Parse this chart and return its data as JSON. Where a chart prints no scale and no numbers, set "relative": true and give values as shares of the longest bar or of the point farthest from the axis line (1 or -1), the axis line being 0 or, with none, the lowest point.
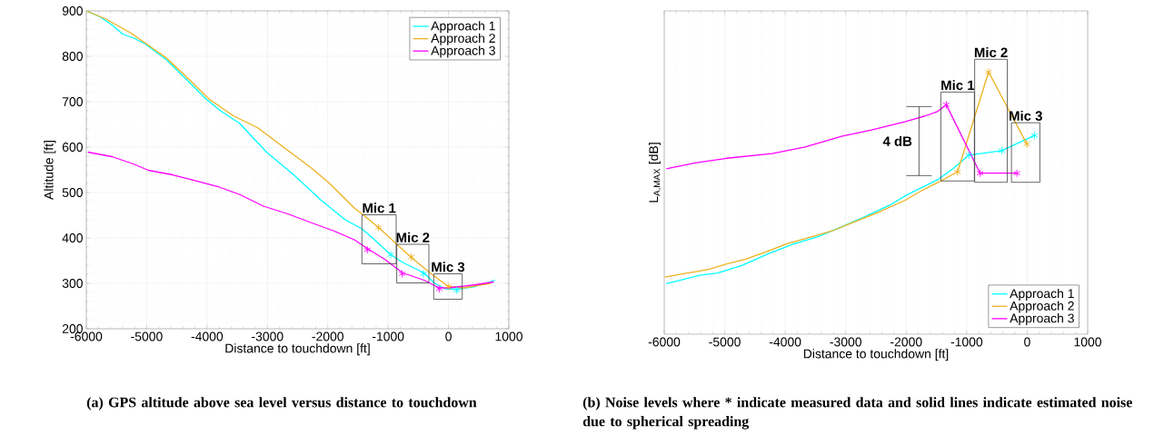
{
  "chart_data": [
    {
      "type": "line",
      "title": "(a) GPS altitude above sea level versus distance to touchdown",
      "xlabel": "Distance to touchdown [ft]",
      "ylabel": "Altitude [ft]",
      "xlim": [
        -6000,
        1000
      ],
      "ylim": [
        200,
        900
      ],
      "xticks": [
        -6000,
        -5000,
        -4000,
        -3000,
        -2000,
        -1000,
        0,
        1000
      ],
      "yticks": [
        200,
        300,
        400,
        500,
        600,
        700,
        800,
        900
      ],
      "grid": true,
      "legend": "top right",
      "annotations": [
        "Mic 1",
        "Mic 2",
        "Mic 3"
      ],
      "series": [
        {
          "name": "Approach 1",
          "color": "#00ffff",
          "x": [
            -6000,
            -5774,
            -5574,
            -5398,
            -5197,
            -5022,
            -4670,
            -4319,
            -4018,
            -3767,
            -3466,
            -3015,
            -2563,
            -2111,
            -1710,
            -1434,
            -1258,
            -957,
            -757,
            -405,
            -230,
            -54,
            146,
            448,
            774
          ],
          "values": [
            900,
            887,
            869,
            849,
            839,
            827,
            792,
            746,
            706,
            679,
            653,
            589,
            539,
            483,
            440,
            420,
            400,
            363,
            346,
            323,
            300,
            288,
            287,
            293,
            307
          ]
        },
        {
          "name": "Approach 2",
          "color": "#edb120",
          "x": [
            -6000,
            -5674,
            -5272,
            -5022,
            -4670,
            -4319,
            -3968,
            -3566,
            -3165,
            -2563,
            -2262,
            -1961,
            -1560,
            -1434,
            -1158,
            -857,
            -606,
            -305,
            -4,
            247,
            699
          ],
          "values": [
            900,
            882,
            852,
            829,
            796,
            752,
            706,
            669,
            643,
            583,
            553,
            519,
            466,
            453,
            423,
            386,
            356,
            323,
            293,
            290,
            300
          ]
        },
        {
          "name": "Approach 3",
          "color": "#ff00ff",
          "x": [
            -5975,
            -5574,
            -5222,
            -4971,
            -4570,
            -4269,
            -3817,
            -3466,
            -3065,
            -2663,
            -2262,
            -1911,
            -1560,
            -1334,
            -1058,
            -757,
            -405,
            -154,
            -4,
            196,
            448,
            749
          ],
          "values": [
            589,
            579,
            563,
            549,
            539,
            529,
            513,
            496,
            470,
            453,
            433,
            416,
            396,
            376,
            353,
            323,
            307,
            290,
            290,
            293,
            297,
            303
          ]
        },
        {
          "color": "#00ffff",
          "type": "scatter",
          "marker": "cross",
          "x": [
            -957,
            -415,
            137
          ],
          "values": [
            363,
            321,
            285
          ]
        },
        {
          "color": "#edb120",
          "type": "scatter",
          "marker": "cross",
          "x": [
            -1158,
            -616,
            -4
          ],
          "values": [
            423,
            358,
            293
          ]
        },
        {
          "color": "#ff00ff",
          "type": "scatter",
          "marker": "cross",
          "x": [
            -1344,
            -767,
            -154
          ],
          "values": [
            374,
            321,
            288
          ]
        }
      ]
    },
    {
      "type": "line",
      "title": "(b) Noise levels where * indicate measured data and solid lines indicate estimated noise due to spherical spreading",
      "xlabel": "Distance to touchdown [ft]",
      "ylabel": "L$_{A,MAX}$ [dB]",
      "relative": true,
      "xlim": [
        -6000,
        1000
      ],
      "xticks": [
        -6000,
        -5000,
        -4000,
        -3000,
        -2000,
        -1000,
        0,
        1000
      ],
      "grid": "x",
      "legend": "bottom right",
      "tick_labels": "x",
      "annotations": [
        "Mic 1",
        "Mic 2",
        "Mic 3",
        "4 dB"
      ],
      "series": [
        {
          "name": "Approach 1",
          "color": "#00ffff",
          "x": [
            -5965,
            -5666,
            -5416,
            -5117,
            -4718,
            -4269,
            -3870,
            -3471,
            -3072,
            -2673,
            -2274,
            -1975,
            -1676,
            -1476,
            -1227,
            -963,
            -419,
            120
          ],
          "values": [
            0.193,
            0.21,
            0.225,
            0.233,
            0.262,
            0.308,
            0.343,
            0.371,
            0.409,
            0.449,
            0.492,
            0.533,
            0.567,
            0.59,
            0.631,
            0.683,
            0.7,
            0.758
          ]
        },
        {
          "name": "Approach 2",
          "color": "#edb120",
          "x": [
            -5990,
            -5616,
            -5267,
            -4968,
            -4668,
            -4319,
            -3970,
            -3571,
            -3222,
            -2973,
            -2474,
            -2025,
            -1726,
            -1476,
            -1152,
            -638,
            -5
          ],
          "values": [
            0.218,
            0.233,
            0.247,
            0.268,
            0.285,
            0.314,
            0.345,
            0.371,
            0.394,
            0.418,
            0.464,
            0.51,
            0.55,
            0.579,
            0.619,
            1.0,
            0.725
          ]
        },
        {
          "name": "Approach 3",
          "color": "#ff00ff",
          "x": [
            -5965,
            -5466,
            -4968,
            -4219,
            -3671,
            -3072,
            -2574,
            -2025,
            -1676,
            -1476,
            -1337,
            -778,
            -170
          ],
          "values": [
            0.631,
            0.654,
            0.671,
            0.689,
            0.714,
            0.755,
            0.779,
            0.81,
            0.833,
            0.85,
            0.875,
            0.614,
            0.614
          ]
        },
        {
          "color": "#00ffff",
          "type": "scatter",
          "marker": "cross",
          "x": [
            -963,
            -419,
            120
          ],
          "values": [
            0.683,
            0.7,
            0.758
          ]
        },
        {
          "color": "#edb120",
          "type": "scatter",
          "marker": "cross",
          "x": [
            -1152,
            -638,
            -5
          ],
          "values": [
            0.619,
            1.0,
            0.725
          ]
        },
        {
          "color": "#ff00ff",
          "type": "scatter",
          "marker": "cross",
          "x": [
            -1337,
            -778,
            -170
          ],
          "values": [
            0.875,
            0.614,
            0.614
          ]
        }
      ]
    }
  ]
}
